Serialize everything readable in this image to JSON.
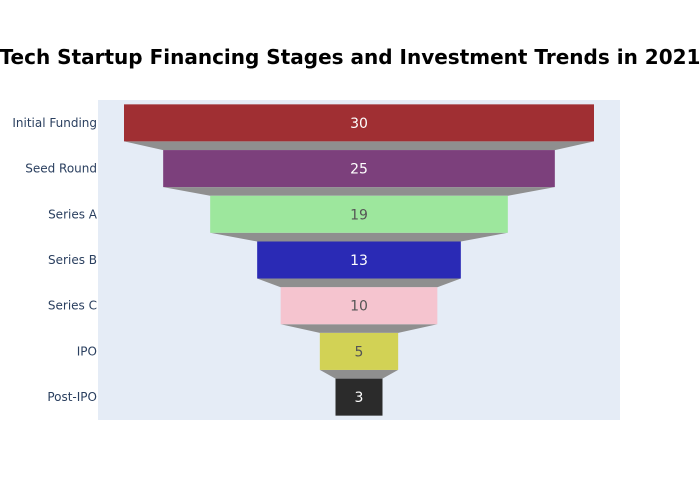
{
  "chart_data": {
    "type": "funnel",
    "title": "Tech Startup Financing Stages and Investment Trends in 2021",
    "categories": [
      "Initial Funding",
      "Seed Round",
      "Series A",
      "Series B",
      "Series C",
      "IPO",
      "Post-IPO"
    ],
    "values": [
      30,
      25,
      19,
      13,
      10,
      5,
      3
    ],
    "labels": [
      "30",
      "25",
      "19",
      "13",
      "10",
      "5",
      "3"
    ],
    "colors": [
      "#a02f33",
      "#7c407c",
      "#9de79d",
      "#2a2ab5",
      "#f5c4cf",
      "#d2d255",
      "#2b2b2b"
    ],
    "label_colors": [
      "#ffffff",
      "#ffffff",
      "#555555",
      "#ffffff",
      "#555555",
      "#555555",
      "#ffffff"
    ],
    "connector_color": "#8f8f8f",
    "plot_background": "#e5ecf6",
    "xlabel": "",
    "ylabel": "",
    "grid": false
  }
}
